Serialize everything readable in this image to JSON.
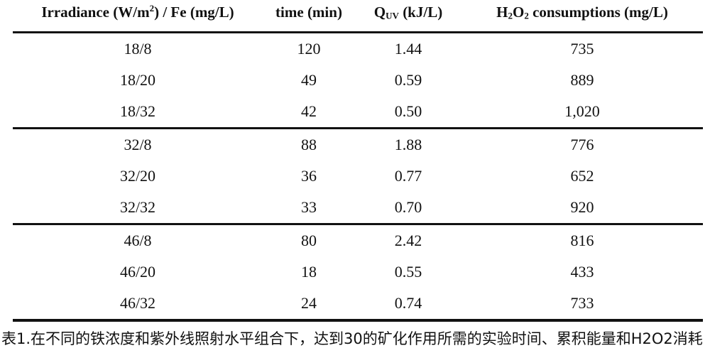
{
  "table": {
    "headers": [
      {
        "segments": {
          "pre": "Irradiance (W/m",
          "sup": "2",
          "post": ") / Fe (mg/L)"
        }
      },
      {
        "label": "time (min)"
      },
      {
        "segments": {
          "pre": "Q",
          "sub": "UV",
          "post": " (kJ/L)"
        }
      },
      {
        "segments": {
          "pre": "H",
          "sub1": "2",
          "mid": "O",
          "sub2": "2",
          "post": " consumptions (mg/L)"
        }
      }
    ],
    "groups": [
      {
        "rows": [
          {
            "cells": [
              "18/8",
              "120",
              "1.44",
              "735"
            ]
          },
          {
            "cells": [
              "18/20",
              "49",
              "0.59",
              "889"
            ]
          },
          {
            "cells": [
              "18/32",
              "42",
              "0.50",
              "1,020"
            ]
          }
        ]
      },
      {
        "rows": [
          {
            "cells": [
              "32/8",
              "88",
              "1.88",
              "776"
            ]
          },
          {
            "cells": [
              "32/20",
              "36",
              "0.77",
              "652"
            ]
          },
          {
            "cells": [
              "32/32",
              "33",
              "0.70",
              "920"
            ]
          }
        ]
      },
      {
        "rows": [
          {
            "cells": [
              "46/8",
              "80",
              "2.42",
              "816"
            ]
          },
          {
            "cells": [
              "46/20",
              "18",
              "0.55",
              "433"
            ]
          },
          {
            "cells": [
              "46/32",
              "24",
              "0.74",
              "733"
            ]
          }
        ]
      }
    ]
  },
  "caption": {
    "text": "表1.在不同的铁浓度和紫外线照射水平组合下，达到30的矿化作用所需的实验时间、累积能量和H2O2消耗"
  },
  "colors": {
    "background": "#ffffff",
    "text": "#111111",
    "rule": "#111111"
  }
}
